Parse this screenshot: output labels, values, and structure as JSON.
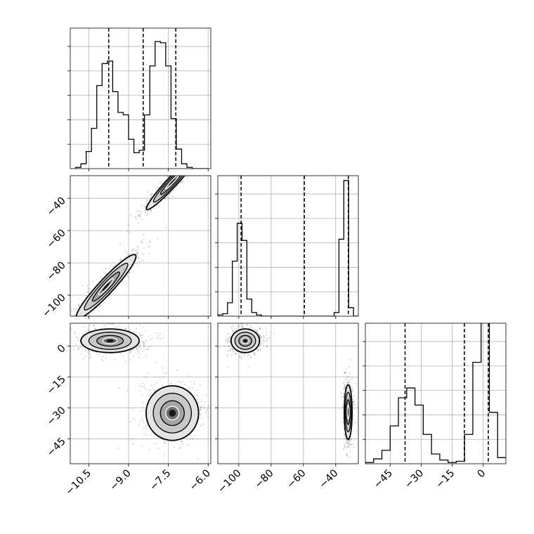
{
  "chart_data": {
    "type": "corner",
    "grid": true,
    "parameters": [
      {
        "range": [
          -11.2,
          -5.9
        ],
        "ticks": [
          -10.5,
          -9.0,
          -7.5,
          -6.0
        ],
        "tick_labels": [
          "−10.5",
          "−9.0",
          "−7.5",
          "−6.0"
        ]
      },
      {
        "range": [
          -113,
          -26
        ],
        "ticks": [
          -100,
          -80,
          -60,
          -40
        ],
        "tick_labels": [
          "−100",
          "−80",
          "−60",
          "−40"
        ]
      },
      {
        "range": [
          -57,
          11
        ],
        "ticks": [
          -45,
          -30,
          -15,
          0
        ],
        "tick_labels": [
          "−45",
          "−30",
          "−15",
          "0"
        ]
      }
    ],
    "histograms": [
      {
        "param": 0,
        "bin_edges": [
          -11.0,
          -10.8,
          -10.6,
          -10.4,
          -10.2,
          -10.0,
          -9.8,
          -9.6,
          -9.4,
          -9.2,
          -9.0,
          -8.8,
          -8.6,
          -8.4,
          -8.2,
          -8.0,
          -7.8,
          -7.6,
          -7.4,
          -7.2,
          -7.0,
          -6.8,
          -6.6,
          -6.4,
          -6.2,
          -6.0
        ],
        "counts": [
          0.01,
          0.04,
          0.14,
          0.33,
          0.68,
          0.86,
          0.88,
          0.63,
          0.46,
          0.44,
          0.24,
          0.13,
          0.15,
          0.44,
          0.84,
          1.04,
          1.03,
          0.84,
          0.41,
          0.16,
          0.04,
          0.01,
          0.0,
          0.0,
          0.0
        ],
        "quantiles": [
          -9.75,
          -8.45,
          -7.22
        ]
      },
      {
        "param": 1,
        "bin_edges": [
          -113,
          -110,
          -107,
          -104,
          -101,
          -98,
          -95,
          -92,
          -89,
          -86,
          -83,
          -80,
          -77,
          -74,
          -71,
          -68,
          -65,
          -62,
          -59,
          -56,
          -53,
          -50,
          -47,
          -44,
          -41,
          -38,
          -35,
          -32,
          -29,
          -26
        ],
        "counts": [
          0.01,
          0.02,
          0.11,
          0.45,
          0.76,
          0.62,
          0.14,
          0.03,
          0.01,
          0.0,
          0.0,
          0.0,
          0.0,
          0.0,
          0.0,
          0.0,
          0.0,
          0.0,
          0.0,
          0.0,
          0.0,
          0.0,
          0.0,
          0.0,
          0.03,
          0.63,
          1.11,
          0.07,
          0.0
        ],
        "quantiles": [
          -98.6,
          -59.4,
          -32.2
        ]
      },
      {
        "param": 2,
        "bin_edges": [
          -57,
          -53,
          -49,
          -45,
          -41,
          -37,
          -33,
          -29,
          -25,
          -21,
          -17,
          -13,
          -9,
          -5,
          -1,
          3,
          7,
          11
        ],
        "counts": [
          0.01,
          0.04,
          0.11,
          0.31,
          0.54,
          0.62,
          0.48,
          0.24,
          0.08,
          0.03,
          0.01,
          0.02,
          0.24,
          0.83,
          1.21,
          0.42,
          0.05
        ],
        "quantiles": [
          -37.8,
          -9.1,
          2.5
        ]
      }
    ],
    "joint_2d": [
      {
        "x_param": 0,
        "y_param": 1,
        "modes": [
          {
            "mean": [
              -7.35,
              -29.8
            ],
            "sd_major": 0.48,
            "sd_minor": 2.9,
            "orientation": "diagonal",
            "weight": 0.5
          },
          {
            "mean": [
              -9.85,
              -94.7
            ],
            "sd_major": 0.55,
            "sd_minor": 4.2,
            "orientation": "diagonal",
            "weight": 0.5
          }
        ]
      },
      {
        "x_param": 0,
        "y_param": 2,
        "modes": [
          {
            "mean": [
              -9.7,
              2.5
            ],
            "sd_x": 0.5,
            "sd_y": 2.6,
            "weight": 0.5
          },
          {
            "mean": [
              -7.35,
              -32.5
            ],
            "sd_x": 0.45,
            "sd_y": 6.0,
            "weight": 0.5
          }
        ]
      },
      {
        "x_param": 1,
        "y_param": 2,
        "modes": [
          {
            "mean": [
              -96.0,
              2.5
            ],
            "sd_x": 4.0,
            "sd_y": 2.6,
            "weight": 0.5
          },
          {
            "mean": [
              -32.3,
              -32.0
            ],
            "sd_x": 1.1,
            "sd_y": 6.0,
            "weight": 0.5
          }
        ]
      }
    ]
  }
}
